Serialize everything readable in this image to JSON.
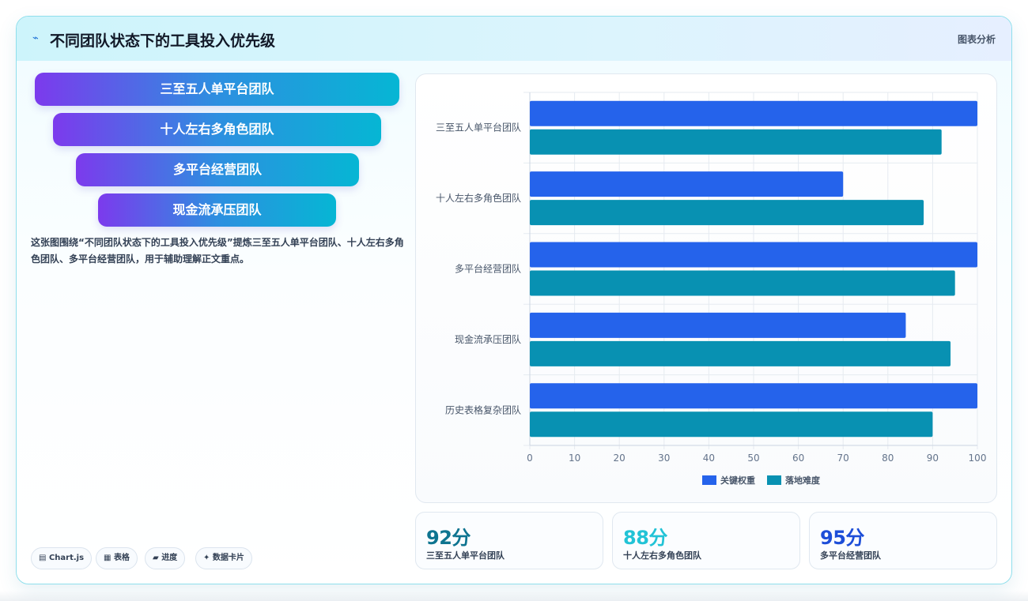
{
  "header": {
    "icon": "zap-icon",
    "title": "不同团队状态下的工具投入优先级",
    "tag": "图表分析"
  },
  "pills": [
    "三至五人单平台团队",
    "十人左右多角色团队",
    "多平台经营团队",
    "现金流承压团队"
  ],
  "description": "这张图围绕“不同团队状态下的工具投入优先级”提炼三至五人单平台团队、十人左右多角色团队、多平台经营团队，用于辅助理解正文重点。",
  "footer_tags": [
    {
      "icon": "chart-icon",
      "glyph": "▤",
      "label": "Chart.js"
    },
    {
      "icon": "table-icon",
      "glyph": "▦",
      "label": "表格"
    },
    {
      "icon": "progress-icon",
      "glyph": "▰",
      "label": "进度"
    },
    {
      "icon": "sparkle-icon",
      "glyph": "✦",
      "label": "数据卡片"
    }
  ],
  "stats": [
    {
      "value": "92分",
      "label": "三至五人单平台团队",
      "color": "#0e7490"
    },
    {
      "value": "88分",
      "label": "十人左右多角色团队",
      "color": "#22c3d6"
    },
    {
      "value": "95分",
      "label": "多平台经营团队",
      "color": "#1d4ed8"
    }
  ],
  "colors": {
    "accent_purple": "#7c3aed",
    "accent_cyan": "#06b6d4",
    "series_1": "#2563eb",
    "series_2": "#0891b2"
  },
  "chart_data": {
    "type": "bar",
    "orientation": "horizontal",
    "categories": [
      "三至五人单平台团队",
      "十人左右多角色团队",
      "多平台经营团队",
      "现金流承压团队",
      "历史表格复杂团队"
    ],
    "series": [
      {
        "name": "关键权重",
        "color": "#2563eb",
        "values": [
          100,
          70,
          100,
          84,
          100
        ]
      },
      {
        "name": "落地难度",
        "color": "#0891b2",
        "values": [
          92,
          88,
          95,
          94,
          90
        ]
      }
    ],
    "xlim": [
      0,
      100
    ],
    "xticks": [
      0,
      10,
      20,
      30,
      40,
      50,
      60,
      70,
      80,
      90,
      100
    ],
    "grid": true,
    "legend": "bottom"
  }
}
